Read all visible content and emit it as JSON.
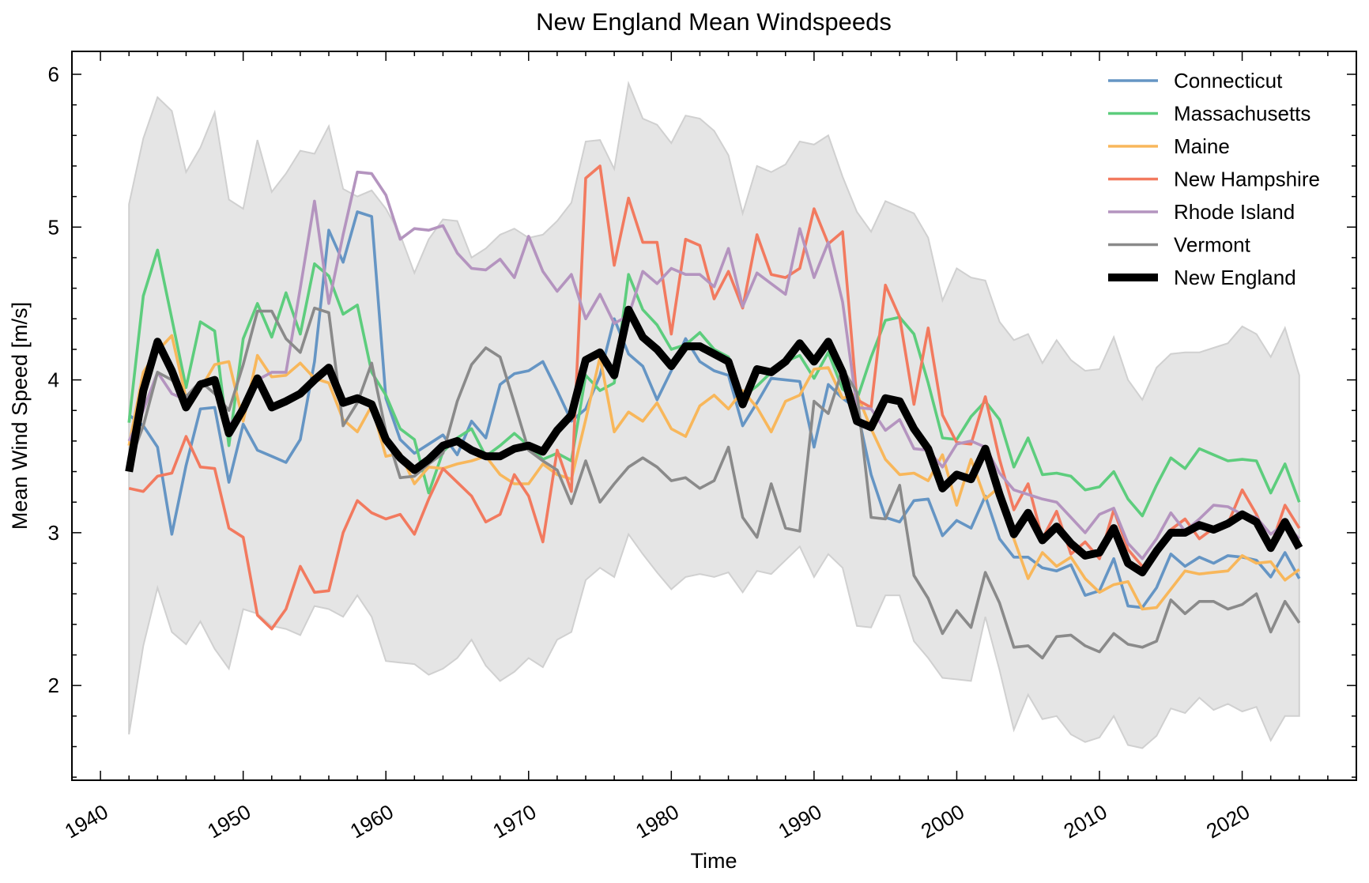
{
  "chart_data": {
    "type": "line",
    "title": "New England Mean Windspeeds",
    "xlabel": "Time",
    "ylabel": "Mean Wind Speed [m/s]",
    "xlim": [
      1938,
      2028
    ],
    "ylim": [
      1.38,
      6.15
    ],
    "xticks": [
      1940,
      1950,
      1960,
      1970,
      1980,
      1990,
      2000,
      2010,
      2020
    ],
    "yticks": [
      2,
      3,
      4,
      5,
      6
    ],
    "x_start": 1942,
    "legend": "top-right",
    "band": {
      "color": "#d0d0d0",
      "upper": [
        5.15,
        5.58,
        5.85,
        5.76,
        5.36,
        5.52,
        5.75,
        5.18,
        5.12,
        5.57,
        5.23,
        5.35,
        5.5,
        5.48,
        5.66,
        5.25,
        5.2,
        5.24,
        5.12,
        4.95,
        4.7,
        4.92,
        5.05,
        5.04,
        4.8,
        4.86,
        4.95,
        4.99,
        4.93,
        4.95,
        5.04,
        5.16,
        5.56,
        5.57,
        5.38,
        5.94,
        5.71,
        5.67,
        5.55,
        5.73,
        5.71,
        5.63,
        5.47,
        5.09,
        5.4,
        5.36,
        5.41,
        5.56,
        5.54,
        5.6,
        5.33,
        5.1,
        4.97,
        5.17,
        5.13,
        5.09,
        4.93,
        4.52,
        4.73,
        4.67,
        4.65,
        4.38,
        4.26,
        4.3,
        4.11,
        4.26,
        4.13,
        4.06,
        4.07,
        4.28,
        4.0,
        3.87,
        4.08,
        4.17,
        4.18,
        4.18,
        4.21,
        4.24,
        4.35,
        4.3,
        4.15,
        4.34,
        4.03
      ],
      "lower": [
        1.68,
        2.26,
        2.64,
        2.35,
        2.27,
        2.42,
        2.24,
        2.11,
        2.5,
        2.47,
        2.39,
        2.37,
        2.33,
        2.52,
        2.5,
        2.45,
        2.59,
        2.45,
        2.16,
        2.15,
        2.14,
        2.07,
        2.11,
        2.18,
        2.3,
        2.13,
        2.03,
        2.09,
        2.18,
        2.12,
        2.3,
        2.35,
        2.69,
        2.77,
        2.71,
        2.99,
        2.86,
        2.74,
        2.63,
        2.71,
        2.73,
        2.71,
        2.74,
        2.61,
        2.75,
        2.73,
        2.82,
        2.91,
        2.71,
        2.86,
        2.77,
        2.39,
        2.38,
        2.59,
        2.59,
        2.29,
        2.18,
        2.05,
        2.04,
        2.03,
        2.45,
        2.1,
        1.71,
        1.94,
        1.78,
        1.8,
        1.68,
        1.63,
        1.66,
        1.8,
        1.61,
        1.59,
        1.67,
        1.85,
        1.82,
        1.92,
        1.84,
        1.88,
        1.83,
        1.86,
        1.64,
        1.8,
        1.8
      ]
    },
    "series": [
      {
        "name": "Connecticut",
        "color": "#6595c4",
        "width": 3.6,
        "values": [
          3.77,
          3.7,
          3.56,
          2.99,
          3.44,
          3.81,
          3.82,
          3.33,
          3.71,
          3.54,
          3.5,
          3.46,
          3.61,
          4.12,
          4.98,
          4.77,
          5.1,
          5.07,
          3.88,
          3.61,
          3.52,
          3.58,
          3.64,
          3.51,
          3.73,
          3.62,
          3.97,
          4.04,
          4.06,
          4.12,
          3.93,
          3.73,
          3.81,
          4.03,
          4.4,
          4.17,
          4.09,
          3.87,
          4.06,
          4.27,
          4.12,
          4.06,
          4.03,
          3.7,
          3.85,
          4.01,
          4.0,
          3.99,
          3.56,
          3.97,
          3.88,
          3.81,
          3.38,
          3.1,
          3.07,
          3.21,
          3.22,
          2.98,
          3.08,
          3.03,
          3.24,
          2.96,
          2.84,
          2.84,
          2.77,
          2.75,
          2.79,
          2.59,
          2.62,
          2.83,
          2.52,
          2.51,
          2.64,
          2.86,
          2.78,
          2.84,
          2.8,
          2.85,
          2.84,
          2.82,
          2.71,
          2.87,
          2.7
        ]
      },
      {
        "name": "Massachusetts",
        "color": "#5dcd7d",
        "width": 3.6,
        "values": [
          3.72,
          4.55,
          4.85,
          4.4,
          3.95,
          4.38,
          4.32,
          3.57,
          4.27,
          4.5,
          4.28,
          4.57,
          4.3,
          4.76,
          4.68,
          4.43,
          4.49,
          4.05,
          3.9,
          3.68,
          3.61,
          3.26,
          3.53,
          3.62,
          3.68,
          3.5,
          3.57,
          3.65,
          3.57,
          3.48,
          3.52,
          3.47,
          4.03,
          3.93,
          3.98,
          4.69,
          4.46,
          4.36,
          4.2,
          4.23,
          4.31,
          4.2,
          4.15,
          3.89,
          3.96,
          4.05,
          4.12,
          4.16,
          4.01,
          4.18,
          3.94,
          3.87,
          4.15,
          4.39,
          4.41,
          4.3,
          3.98,
          3.62,
          3.61,
          3.76,
          3.86,
          3.74,
          3.43,
          3.62,
          3.38,
          3.39,
          3.37,
          3.28,
          3.3,
          3.4,
          3.22,
          3.11,
          3.31,
          3.49,
          3.42,
          3.55,
          3.51,
          3.47,
          3.48,
          3.47,
          3.26,
          3.45,
          3.2
        ]
      },
      {
        "name": "Maine",
        "color": "#f8b75b",
        "width": 3.6,
        "values": [
          3.57,
          4.05,
          4.19,
          4.29,
          3.88,
          3.94,
          4.1,
          4.12,
          3.73,
          4.16,
          4.02,
          4.03,
          4.11,
          4.01,
          3.98,
          3.74,
          3.66,
          3.83,
          3.5,
          3.52,
          3.32,
          3.43,
          3.42,
          3.45,
          3.47,
          3.5,
          3.38,
          3.32,
          3.32,
          3.45,
          3.38,
          3.35,
          3.74,
          4.15,
          3.66,
          3.79,
          3.73,
          3.85,
          3.68,
          3.63,
          3.83,
          3.9,
          3.81,
          3.93,
          3.82,
          3.66,
          3.86,
          3.9,
          4.07,
          4.08,
          3.88,
          3.91,
          3.68,
          3.48,
          3.38,
          3.39,
          3.34,
          3.51,
          3.18,
          3.48,
          3.22,
          3.3,
          2.96,
          2.7,
          2.87,
          2.78,
          2.84,
          2.7,
          2.61,
          2.66,
          2.68,
          2.5,
          2.51,
          2.63,
          2.75,
          2.73,
          2.74,
          2.75,
          2.85,
          2.8,
          2.81,
          2.69,
          2.76
        ]
      },
      {
        "name": "New Hampshire",
        "color": "#f27a5f",
        "width": 3.6,
        "values": [
          3.29,
          3.27,
          3.37,
          3.39,
          3.63,
          3.43,
          3.42,
          3.03,
          2.97,
          2.46,
          2.37,
          2.5,
          2.78,
          2.61,
          2.62,
          3.0,
          3.21,
          3.13,
          3.09,
          3.12,
          2.99,
          3.22,
          3.42,
          3.33,
          3.24,
          3.07,
          3.12,
          3.38,
          3.24,
          2.94,
          3.54,
          3.27,
          5.32,
          5.4,
          4.75,
          5.19,
          4.9,
          4.9,
          4.3,
          4.92,
          4.88,
          4.53,
          4.71,
          4.47,
          4.95,
          4.69,
          4.67,
          4.73,
          5.12,
          4.89,
          4.97,
          3.87,
          3.82,
          4.62,
          4.41,
          3.84,
          4.34,
          3.77,
          3.59,
          3.58,
          3.89,
          3.48,
          3.15,
          3.32,
          2.96,
          3.14,
          2.86,
          2.94,
          2.83,
          3.15,
          2.89,
          2.78,
          2.85,
          3.02,
          3.09,
          2.96,
          3.03,
          3.06,
          3.28,
          3.12,
          2.91,
          3.18,
          3.03
        ]
      },
      {
        "name": "Rhode Island",
        "color": "#b494bf",
        "width": 3.6,
        "values": [
          3.6,
          3.8,
          4.05,
          3.91,
          3.87,
          3.97,
          4.0,
          3.7,
          3.82,
          4.0,
          4.05,
          4.05,
          4.6,
          5.17,
          4.5,
          4.95,
          5.36,
          5.35,
          5.21,
          4.92,
          4.99,
          4.98,
          5.01,
          4.83,
          4.73,
          4.72,
          4.79,
          4.67,
          4.94,
          4.71,
          4.58,
          4.69,
          4.4,
          4.56,
          4.37,
          4.42,
          4.71,
          4.63,
          4.73,
          4.69,
          4.69,
          4.61,
          4.86,
          4.48,
          4.7,
          4.63,
          4.56,
          4.99,
          4.67,
          4.9,
          4.51,
          3.82,
          3.81,
          3.67,
          3.74,
          3.55,
          3.54,
          3.43,
          3.58,
          3.6,
          3.56,
          3.39,
          3.28,
          3.25,
          3.22,
          3.2,
          3.1,
          3.0,
          3.12,
          3.16,
          2.93,
          2.83,
          2.96,
          3.13,
          3.01,
          3.09,
          3.18,
          3.17,
          3.12,
          3.1,
          2.99,
          3.06,
          2.96
        ]
      },
      {
        "name": "Vermont",
        "color": "#8a8a8a",
        "width": 3.6,
        "values": [
          3.45,
          3.7,
          4.05,
          4.0,
          3.89,
          3.99,
          3.91,
          3.8,
          4.1,
          4.45,
          4.45,
          4.27,
          4.18,
          4.47,
          4.44,
          3.7,
          3.85,
          4.11,
          3.66,
          3.36,
          3.37,
          3.45,
          3.52,
          3.86,
          4.1,
          4.21,
          4.15,
          3.85,
          3.54,
          3.47,
          3.41,
          3.19,
          3.47,
          3.2,
          3.32,
          3.43,
          3.49,
          3.43,
          3.34,
          3.36,
          3.29,
          3.34,
          3.56,
          3.1,
          2.97,
          3.32,
          3.03,
          3.01,
          3.86,
          3.78,
          4.07,
          3.92,
          3.1,
          3.09,
          3.31,
          2.72,
          2.57,
          2.34,
          2.49,
          2.38,
          2.74,
          2.54,
          2.25,
          2.26,
          2.18,
          2.32,
          2.33,
          2.26,
          2.22,
          2.34,
          2.27,
          2.25,
          2.29,
          2.56,
          2.47,
          2.55,
          2.55,
          2.5,
          2.53,
          2.6,
          2.35,
          2.55,
          2.41
        ]
      },
      {
        "name": "New England",
        "color": "#000000",
        "width": 10,
        "values": [
          3.4,
          3.93,
          4.25,
          4.06,
          3.82,
          3.97,
          4.0,
          3.65,
          3.81,
          4.01,
          3.82,
          3.86,
          3.91,
          4.0,
          4.08,
          3.85,
          3.88,
          3.84,
          3.61,
          3.49,
          3.41,
          3.48,
          3.57,
          3.6,
          3.54,
          3.5,
          3.5,
          3.55,
          3.57,
          3.53,
          3.67,
          3.77,
          4.13,
          4.18,
          4.03,
          4.46,
          4.28,
          4.2,
          4.09,
          4.22,
          4.22,
          4.17,
          4.12,
          3.84,
          4.07,
          4.05,
          4.12,
          4.24,
          4.12,
          4.25,
          4.05,
          3.73,
          3.69,
          3.88,
          3.86,
          3.68,
          3.55,
          3.29,
          3.38,
          3.35,
          3.55,
          3.25,
          2.99,
          3.13,
          2.95,
          3.04,
          2.93,
          2.85,
          2.87,
          3.03,
          2.8,
          2.74,
          2.88,
          3.0,
          3.0,
          3.05,
          3.02,
          3.06,
          3.12,
          3.07,
          2.9,
          3.07,
          2.9
        ]
      }
    ]
  }
}
